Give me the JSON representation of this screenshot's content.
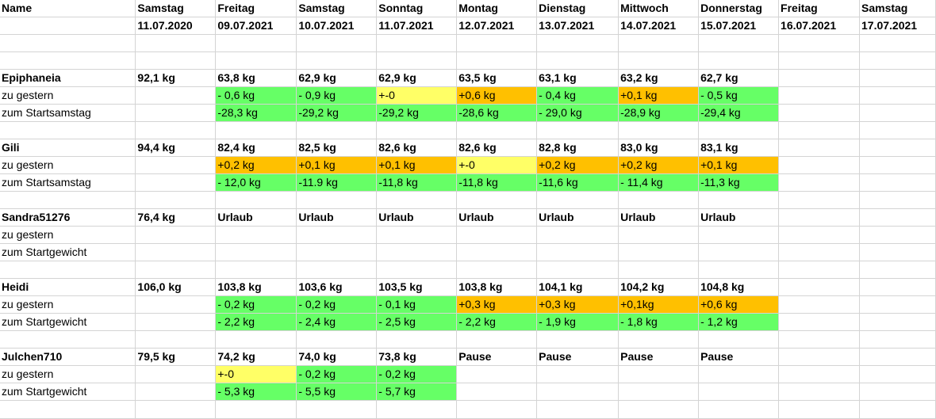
{
  "headers": {
    "name_label": "Name",
    "days": [
      "Samstag",
      "Freitag",
      "Samstag",
      "Sonntag",
      "Montag",
      "Dienstag",
      "Mittwoch",
      "Donnerstag",
      "Freitag",
      "Samstag"
    ],
    "dates": [
      "11.07.2020",
      "09.07.2021",
      "10.07.2021",
      "11.07.2021",
      "12.07.2021",
      "13.07.2021",
      "14.07.2021",
      "15.07.2021",
      "16.07.2021",
      "17.07.2021"
    ]
  },
  "colors": {
    "loss": "#66ff66",
    "gain": "#ffc000",
    "neutral": "#ffff66",
    "gridline": "#d4d4d4"
  },
  "people": [
    {
      "name": "Epiphaneia",
      "start": "92,1 kg",
      "weights": [
        "63,8 kg",
        "62,9 kg",
        "62,9 kg",
        "63,5 kg",
        "63,1 kg",
        "63,2 kg",
        "62,7 kg"
      ],
      "rows": [
        {
          "label": "zu gestern",
          "values": [
            "- 0,6 kg",
            "- 0,9 kg",
            "+-0",
            "+0,6 kg",
            "- 0,4 kg",
            "+0,1 kg",
            "- 0,5 kg"
          ],
          "status": [
            "loss",
            "loss",
            "neutral",
            "gain",
            "loss",
            "gain",
            "loss"
          ]
        },
        {
          "label": "zum Startsamstag",
          "values": [
            "-28,3 kg",
            "-29,2 kg",
            "-29,2 kg",
            "-28,6 kg",
            "- 29,0 kg",
            "-28,9 kg",
            "-29,4 kg"
          ],
          "status": [
            "loss",
            "loss",
            "loss",
            "loss",
            "loss",
            "loss",
            "loss"
          ]
        }
      ]
    },
    {
      "name": "Gili",
      "start": "94,4 kg",
      "weights": [
        "82,4 kg",
        "82,5 kg",
        "82,6 kg",
        "82,6 kg",
        "82,8 kg",
        "83,0 kg",
        "83,1 kg"
      ],
      "rows": [
        {
          "label": "zu gestern",
          "values": [
            "+0,2 kg",
            "+0,1 kg",
            "+0,1 kg",
            "+-0",
            "+0,2 kg",
            "+0,2 kg",
            "+0,1 kg"
          ],
          "status": [
            "gain",
            "gain",
            "gain",
            "neutral",
            "gain",
            "gain",
            "gain"
          ]
        },
        {
          "label": "zum Startsamstag",
          "values": [
            "- 12,0 kg",
            "-11.9 kg",
            "-11,8 kg",
            "-11,8 kg",
            "-11,6 kg",
            "- 11,4 kg",
            "-11,3 kg"
          ],
          "status": [
            "loss",
            "loss",
            "loss",
            "loss",
            "loss",
            "loss",
            "loss"
          ]
        }
      ]
    },
    {
      "name": "Sandra51276",
      "start": "76,4 kg",
      "weights": [
        "Urlaub",
        "Urlaub",
        "Urlaub",
        "Urlaub",
        "Urlaub",
        "Urlaub",
        "Urlaub"
      ],
      "rows": [
        {
          "label": "zu gestern",
          "values": [],
          "status": []
        },
        {
          "label": "zum Startgewicht",
          "values": [],
          "status": []
        }
      ]
    },
    {
      "name": "Heidi",
      "start": "106,0 kg",
      "weights": [
        "103,8 kg",
        "103,6 kg",
        "103,5 kg",
        "103,8 kg",
        "104,1 kg",
        "104,2 kg",
        "104,8 kg"
      ],
      "rows": [
        {
          "label": "zu gestern",
          "values": [
            "- 0,2 kg",
            "- 0,2 kg",
            "- 0,1 kg",
            "+0,3 kg",
            "+0,3 kg",
            "+0,1kg",
            "+0,6 kg"
          ],
          "status": [
            "loss",
            "loss",
            "loss",
            "gain",
            "gain",
            "gain",
            "gain"
          ]
        },
        {
          "label": "zum Startgewicht",
          "values": [
            "- 2,2 kg",
            "- 2,4 kg",
            "- 2,5 kg",
            "-  2,2 kg",
            "- 1,9 kg",
            "- 1,8 kg",
            "- 1,2 kg"
          ],
          "status": [
            "loss",
            "loss",
            "loss",
            "loss",
            "loss",
            "loss",
            "loss"
          ]
        }
      ]
    },
    {
      "name": "Julchen710",
      "start": "79,5 kg",
      "weights": [
        "74,2 kg",
        "74,0 kg",
        "73,8 kg",
        "Pause",
        "Pause",
        "Pause",
        "Pause"
      ],
      "rows": [
        {
          "label": "zu gestern",
          "values": [
            "+-0",
            "- 0,2 kg",
            "- 0,2 kg"
          ],
          "status": [
            "neutral",
            "loss",
            "loss"
          ]
        },
        {
          "label": "zum Startgewicht",
          "values": [
            "- 5,3 kg",
            "- 5,5 kg",
            "- 5,7 kg"
          ],
          "status": [
            "loss",
            "loss",
            "loss"
          ]
        }
      ]
    }
  ]
}
